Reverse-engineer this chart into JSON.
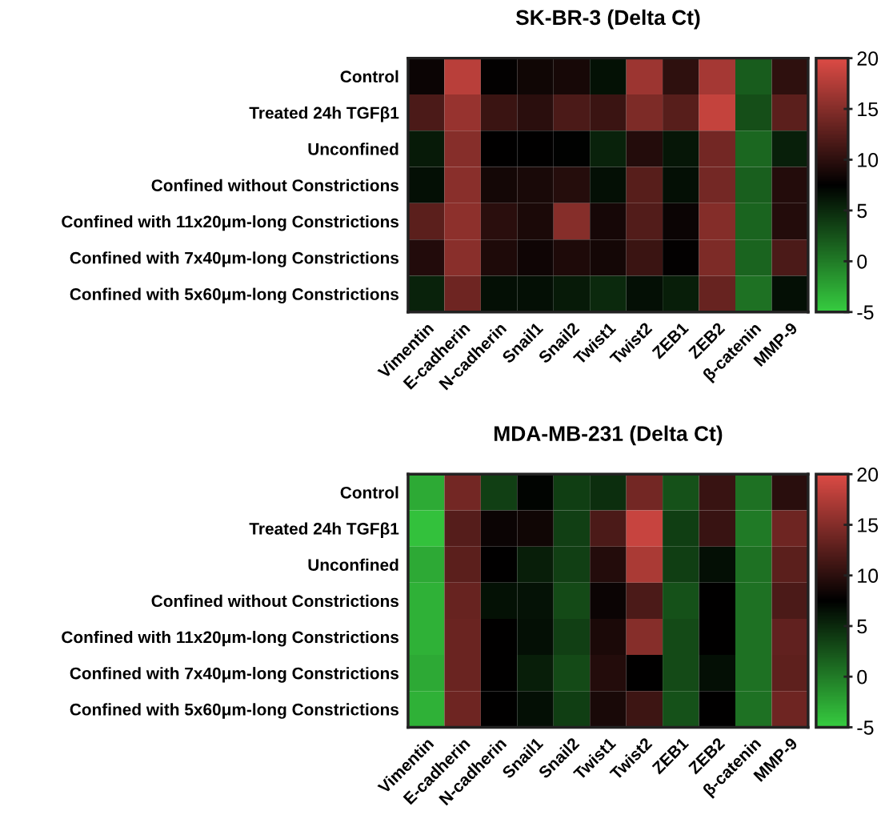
{
  "chart_data": [
    {
      "type": "heatmap",
      "title": "SK-BR-3 (Delta Ct)",
      "categories": [
        "Vimentin",
        "E-cadherin",
        "N-cadherin",
        "Snail1",
        "Snail2",
        "Twist1",
        "Twist2",
        "ZEB1",
        "ZEB2",
        "β-catenin",
        "MMP-9"
      ],
      "y_categories": [
        "Control",
        "Treated 24h TGFβ1",
        "Unconfined",
        "Confined without Constrictions",
        "Confined with 11x20μm-long Constrictions",
        "Confined with 7x40μm-long Constrictions",
        "Confined with 5x60μm-long Constrictions"
      ],
      "cells": [
        [
          8.1,
          18,
          7.6,
          8.4,
          8.8,
          6.5,
          16.3,
          10.1,
          16.8,
          1.9,
          10.1
        ],
        [
          11.7,
          16,
          10.8,
          9.9,
          11.7,
          10.8,
          14.6,
          12.4,
          18.6,
          2.8,
          12.6
        ],
        [
          5.9,
          15.1,
          7.5,
          7.5,
          7.4,
          5.4,
          9.5,
          6.2,
          14,
          1.2,
          5.6
        ],
        [
          6.6,
          15.3,
          8.6,
          8.9,
          9.6,
          6.6,
          12.4,
          6.6,
          14.1,
          1.7,
          9.5
        ],
        [
          12.6,
          15.5,
          9.9,
          9,
          15.1,
          8.7,
          12.1,
          8.1,
          15,
          1.4,
          9.5
        ],
        [
          9.4,
          15.3,
          9.2,
          8.3,
          9.2,
          8.6,
          10.8,
          7.6,
          14.6,
          1.4,
          11.7
        ],
        [
          5.4,
          13.7,
          6.6,
          6.6,
          5.9,
          5,
          6.6,
          5.7,
          13.3,
          0.6,
          6.6
        ]
      ],
      "clim": [
        -5,
        20
      ],
      "cticks": [
        -5,
        0,
        5,
        10,
        15,
        20
      ]
    },
    {
      "type": "heatmap",
      "title": "MDA-MB-231 (Delta Ct)",
      "categories": [
        "Vimentin",
        "E-cadherin",
        "N-cadherin",
        "Snail1",
        "Snail2",
        "Twist1",
        "Twist2",
        "ZEB1",
        "ZEB2",
        "β-catenin",
        "MMP-9"
      ],
      "y_categories": [
        "Control",
        "Treated 24h TGFβ1",
        "Unconfined",
        "Confined without Constrictions",
        "Confined with 11x20μm-long Constrictions",
        "Confined with 7x40μm-long Constrictions",
        "Confined with 5x60μm-long Constrictions"
      ],
      "cells": [
        [
          -2.9,
          14,
          3.6,
          7.3,
          3.7,
          4.7,
          14,
          2.6,
          10.7,
          0.6,
          9.8
        ],
        [
          -4.3,
          12.3,
          8.1,
          8.4,
          3.6,
          11.7,
          18.8,
          3.7,
          10.7,
          0,
          13.7
        ],
        [
          -2.8,
          12.6,
          7.5,
          5.7,
          3.6,
          9.5,
          17.1,
          3.7,
          6.6,
          0.6,
          12.6
        ],
        [
          -3.3,
          13.3,
          6.5,
          6.4,
          3,
          8.1,
          11.7,
          2.6,
          7.5,
          0.6,
          11.7
        ],
        [
          -3.3,
          13.5,
          7.5,
          6.6,
          3.6,
          9,
          15.1,
          3,
          7.5,
          0.6,
          13
        ],
        [
          -2.8,
          13.5,
          7.5,
          5.7,
          3,
          9.5,
          7.5,
          3,
          6.6,
          0.6,
          12.8
        ],
        [
          -3.3,
          13.7,
          7.5,
          6.6,
          3.7,
          8.9,
          11,
          2.6,
          7.5,
          0.6,
          13.7
        ]
      ],
      "clim": [
        -5,
        20
      ],
      "cticks": [
        -5,
        0,
        5,
        10,
        15,
        20
      ]
    }
  ]
}
